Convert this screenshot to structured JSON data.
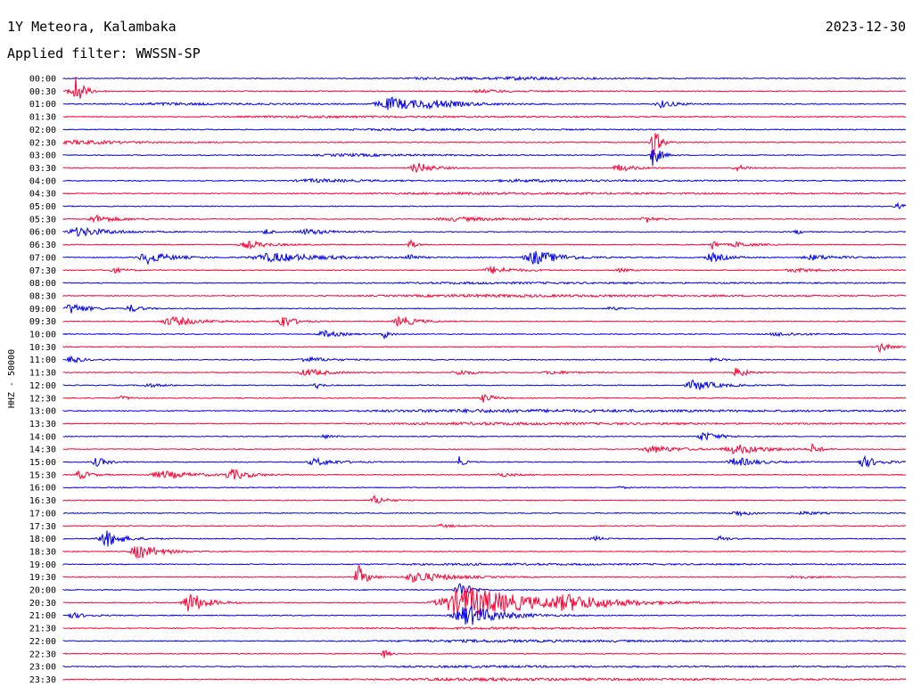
{
  "header": {
    "station": "1Y Meteora, Kalambaka",
    "date": "2023-12-30",
    "filter": "Applied filter: WWSSN-SP"
  },
  "chart_data": {
    "type": "line",
    "ylabel": "HHZ - 50000",
    "colors": {
      "even": "#0000ee",
      "odd": "#ff0033"
    },
    "rows": [
      {
        "time": "00:00",
        "events": [
          [
            0.43,
            0.9,
            0.1
          ],
          [
            0.48,
            0.7,
            0.1
          ],
          [
            0.55,
            1.3,
            0.12
          ]
        ]
      },
      {
        "time": "00:30",
        "events": [
          [
            0.01,
            6,
            0.02
          ],
          [
            0.015,
            14,
            0.012
          ],
          [
            0.5,
            1.4,
            0.08
          ]
        ]
      },
      {
        "time": "01:00",
        "events": [
          [
            0.12,
            1.2,
            0.2
          ],
          [
            0.39,
            7,
            0.07
          ],
          [
            0.44,
            2.5,
            0.06
          ],
          [
            0.71,
            4,
            0.03
          ]
        ]
      },
      {
        "time": "01:30",
        "events": [
          [
            0.3,
            0.9,
            0.4
          ]
        ]
      },
      {
        "time": "02:00",
        "events": [
          [
            0.4,
            0.8,
            0.3
          ]
        ]
      },
      {
        "time": "02:30",
        "events": [
          [
            0.02,
            2.2,
            0.1
          ],
          [
            0.7,
            18,
            0.012
          ]
        ]
      },
      {
        "time": "03:00",
        "events": [
          [
            0.34,
            1.3,
            0.15
          ],
          [
            0.7,
            14,
            0.012
          ]
        ]
      },
      {
        "time": "03:30",
        "events": [
          [
            0.42,
            6,
            0.03
          ],
          [
            0.66,
            4,
            0.03
          ],
          [
            0.8,
            3,
            0.025
          ]
        ]
      },
      {
        "time": "04:00",
        "events": [
          [
            0.3,
            1.8,
            0.1
          ],
          [
            0.55,
            1.2,
            0.2
          ]
        ]
      },
      {
        "time": "04:30",
        "events": [
          [
            0.5,
            0.9,
            0.6
          ]
        ]
      },
      {
        "time": "05:00",
        "events": [
          [
            0.99,
            3,
            0.015
          ]
        ]
      },
      {
        "time": "05:30",
        "events": [
          [
            0.04,
            4,
            0.04
          ],
          [
            0.47,
            2,
            0.12
          ],
          [
            0.69,
            5,
            0.015
          ]
        ]
      },
      {
        "time": "06:00",
        "events": [
          [
            0.02,
            5,
            0.06
          ],
          [
            0.24,
            4,
            0.01
          ],
          [
            0.29,
            3,
            0.05
          ],
          [
            0.87,
            3,
            0.01
          ]
        ]
      },
      {
        "time": "06:30",
        "events": [
          [
            0.22,
            4,
            0.04
          ],
          [
            0.41,
            7,
            0.01
          ],
          [
            0.77,
            6,
            0.01
          ],
          [
            0.8,
            3,
            0.03
          ]
        ]
      },
      {
        "time": "07:00",
        "events": [
          [
            0.1,
            7,
            0.04
          ],
          [
            0.25,
            5,
            0.1
          ],
          [
            0.41,
            6,
            0.01
          ],
          [
            0.56,
            8,
            0.05
          ],
          [
            0.77,
            5,
            0.03
          ],
          [
            0.89,
            3,
            0.05
          ]
        ]
      },
      {
        "time": "07:30",
        "events": [
          [
            0.06,
            3,
            0.02
          ],
          [
            0.51,
            4,
            0.04
          ],
          [
            0.66,
            2,
            0.02
          ],
          [
            0.87,
            2,
            0.05
          ]
        ]
      },
      {
        "time": "08:00",
        "events": [
          [
            0.5,
            0.8,
            0.5
          ]
        ]
      },
      {
        "time": "08:30",
        "events": [
          [
            0.5,
            1.2,
            0.5
          ]
        ]
      },
      {
        "time": "09:00",
        "events": [
          [
            0.01,
            6,
            0.03
          ],
          [
            0.08,
            4,
            0.02
          ],
          [
            0.65,
            2,
            0.02
          ]
        ]
      },
      {
        "time": "09:30",
        "events": [
          [
            0.13,
            5,
            0.05
          ],
          [
            0.26,
            8,
            0.02
          ],
          [
            0.4,
            6,
            0.03
          ]
        ]
      },
      {
        "time": "10:00",
        "events": [
          [
            0.31,
            4,
            0.03
          ],
          [
            0.38,
            6,
            0.01
          ],
          [
            0.85,
            2,
            0.05
          ]
        ]
      },
      {
        "time": "10:30",
        "events": [
          [
            0.97,
            6,
            0.015
          ]
        ]
      },
      {
        "time": "11:00",
        "events": [
          [
            0.01,
            4,
            0.02
          ],
          [
            0.29,
            3,
            0.04
          ],
          [
            0.77,
            2,
            0.02
          ]
        ]
      },
      {
        "time": "11:30",
        "events": [
          [
            0.29,
            4,
            0.04
          ],
          [
            0.47,
            3,
            0.03
          ],
          [
            0.58,
            2,
            0.04
          ],
          [
            0.8,
            7,
            0.015
          ]
        ]
      },
      {
        "time": "12:00",
        "events": [
          [
            0.1,
            2,
            0.03
          ],
          [
            0.3,
            4,
            0.01
          ],
          [
            0.75,
            6,
            0.04
          ]
        ]
      },
      {
        "time": "12:30",
        "events": [
          [
            0.07,
            2,
            0.02
          ],
          [
            0.5,
            6,
            0.015
          ]
        ]
      },
      {
        "time": "13:00",
        "events": [
          [
            0.5,
            1.5,
            0.6
          ]
        ]
      },
      {
        "time": "13:30",
        "events": [
          [
            0.5,
            1.2,
            0.5
          ]
        ]
      },
      {
        "time": "14:00",
        "events": [
          [
            0.31,
            2,
            0.02
          ],
          [
            0.76,
            5,
            0.03
          ]
        ]
      },
      {
        "time": "14:30",
        "events": [
          [
            0.7,
            4,
            0.05
          ],
          [
            0.8,
            5,
            0.06
          ],
          [
            0.89,
            7,
            0.01
          ]
        ]
      },
      {
        "time": "15:00",
        "events": [
          [
            0.04,
            5,
            0.02
          ],
          [
            0.3,
            4,
            0.04
          ],
          [
            0.47,
            6,
            0.01
          ],
          [
            0.8,
            5,
            0.04
          ],
          [
            0.95,
            6,
            0.03
          ]
        ]
      },
      {
        "time": "15:30",
        "events": [
          [
            0.02,
            5,
            0.02
          ],
          [
            0.12,
            4,
            0.06
          ],
          [
            0.2,
            6,
            0.03
          ],
          [
            0.52,
            2,
            0.03
          ]
        ]
      },
      {
        "time": "16:00",
        "events": [
          [
            0.66,
            1.5,
            0.01
          ]
        ]
      },
      {
        "time": "16:30",
        "events": [
          [
            0.37,
            5,
            0.02
          ]
        ]
      },
      {
        "time": "17:00",
        "events": [
          [
            0.8,
            3,
            0.03
          ],
          [
            0.88,
            2,
            0.03
          ]
        ]
      },
      {
        "time": "17:30",
        "events": [
          [
            0.45,
            2,
            0.02
          ]
        ]
      },
      {
        "time": "18:00",
        "events": [
          [
            0.05,
            10,
            0.03
          ],
          [
            0.63,
            3,
            0.015
          ],
          [
            0.78,
            3,
            0.015
          ]
        ]
      },
      {
        "time": "18:30",
        "events": [
          [
            0.09,
            8,
            0.04
          ]
        ]
      },
      {
        "time": "19:00",
        "events": [
          [
            0.5,
            0.8,
            0.5
          ]
        ]
      },
      {
        "time": "19:30",
        "events": [
          [
            0.35,
            14,
            0.015
          ],
          [
            0.42,
            6,
            0.06
          ],
          [
            0.87,
            2,
            0.03
          ]
        ]
      },
      {
        "time": "20:00",
        "events": [
          [
            0.47,
            10,
            0.02
          ]
        ]
      },
      {
        "time": "20:30",
        "events": [
          [
            0.15,
            12,
            0.03
          ],
          [
            0.48,
            18,
            0.12
          ],
          [
            0.6,
            6,
            0.08
          ]
        ]
      },
      {
        "time": "21:00",
        "events": [
          [
            0.01,
            3,
            0.03
          ],
          [
            0.48,
            12,
            0.06
          ]
        ]
      },
      {
        "time": "21:30",
        "events": [
          [
            0.5,
            0.8,
            0.5
          ]
        ]
      },
      {
        "time": "22:00",
        "events": [
          [
            0.5,
            1.1,
            0.5
          ]
        ]
      },
      {
        "time": "22:30",
        "events": [
          [
            0.38,
            5,
            0.01
          ]
        ]
      },
      {
        "time": "23:00",
        "events": [
          [
            0.5,
            0.8,
            0.5
          ]
        ]
      },
      {
        "time": "23:30",
        "events": [
          [
            0.5,
            1.3,
            0.5
          ]
        ]
      }
    ]
  }
}
